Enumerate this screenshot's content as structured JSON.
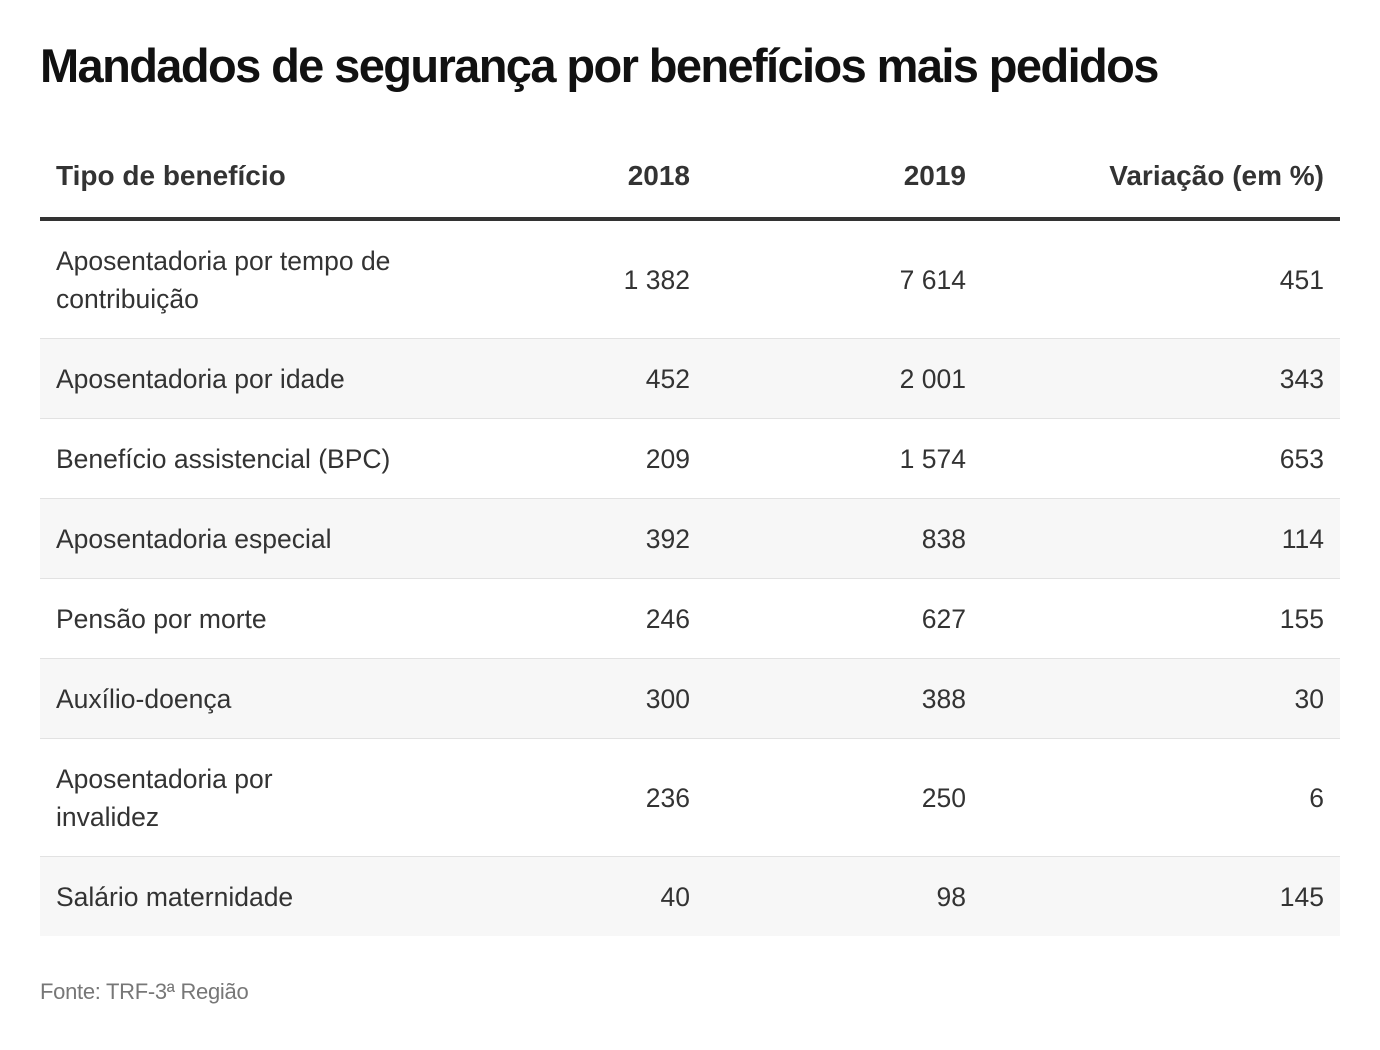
{
  "title": "Mandados de segurança por benefícios mais pedidos",
  "source": "Fonte: TRF-3ª Região",
  "chart_data": {
    "type": "table",
    "title": "Mandados de segurança por benefícios mais pedidos",
    "columns": [
      "Tipo de benefício",
      "2018",
      "2019",
      "Variação (em %)"
    ],
    "rows": [
      {
        "type": "Aposentadoria por tempo de contribuição",
        "y2018": "1 382",
        "y2019": "7 614",
        "variation": "451"
      },
      {
        "type": "Aposentadoria por idade",
        "y2018": "452",
        "y2019": "2 001",
        "variation": "343"
      },
      {
        "type": "Benefício assistencial (BPC)",
        "y2018": "209",
        "y2019": "1 574",
        "variation": "653"
      },
      {
        "type": "Aposentadoria especial",
        "y2018": "392",
        "y2019": "838",
        "variation": "114"
      },
      {
        "type": "Pensão por morte",
        "y2018": "246",
        "y2019": "627",
        "variation": "155"
      },
      {
        "type": "Auxílio-doença",
        "y2018": "300",
        "y2019": "388",
        "variation": "30"
      },
      {
        "type": "Aposentadoria por invalidez",
        "y2018": "236",
        "y2019": "250",
        "variation": "6"
      },
      {
        "type": "Salário maternidade",
        "y2018": "40",
        "y2019": "98",
        "variation": "145"
      }
    ]
  }
}
